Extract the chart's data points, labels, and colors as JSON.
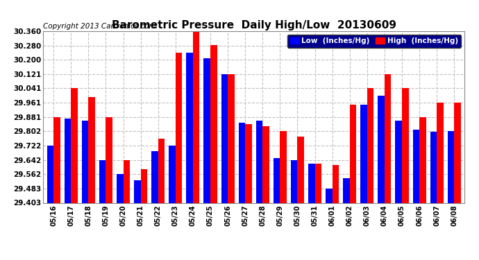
{
  "title": "Barometric Pressure  Daily High/Low  20130609",
  "copyright": "Copyright 2013 Cartronics.com",
  "legend_low": "Low  (Inches/Hg)",
  "legend_high": "High  (Inches/Hg)",
  "dates": [
    "05/16",
    "05/17",
    "05/18",
    "05/19",
    "05/20",
    "05/21",
    "05/22",
    "05/23",
    "05/24",
    "05/25",
    "05/26",
    "05/27",
    "05/28",
    "05/29",
    "05/30",
    "05/31",
    "06/01",
    "06/02",
    "06/03",
    "06/04",
    "06/05",
    "06/06",
    "06/07",
    "06/08"
  ],
  "low": [
    29.722,
    29.871,
    29.862,
    29.641,
    29.562,
    29.53,
    29.692,
    29.722,
    30.241,
    30.211,
    30.121,
    29.851,
    29.862,
    29.651,
    29.641,
    29.622,
    29.483,
    29.542,
    29.951,
    30.001,
    29.862,
    29.811,
    29.801,
    29.802
  ],
  "high": [
    29.881,
    30.041,
    29.991,
    29.881,
    29.641,
    29.591,
    29.762,
    30.241,
    30.361,
    30.281,
    30.121,
    29.841,
    29.831,
    29.802,
    29.771,
    29.622,
    29.612,
    29.951,
    30.041,
    30.121,
    30.041,
    29.881,
    29.961,
    29.961
  ],
  "ylim_min": 29.403,
  "ylim_max": 30.36,
  "yticks": [
    29.403,
    29.483,
    29.562,
    29.642,
    29.722,
    29.802,
    29.881,
    29.961,
    30.041,
    30.121,
    30.2,
    30.28,
    30.36
  ],
  "bar_width": 0.38,
  "low_color": "#0000ff",
  "high_color": "#ff0000",
  "bg_color": "#ffffff",
  "grid_color": "#c0c0c0",
  "title_fontsize": 11,
  "copyright_fontsize": 7.5
}
